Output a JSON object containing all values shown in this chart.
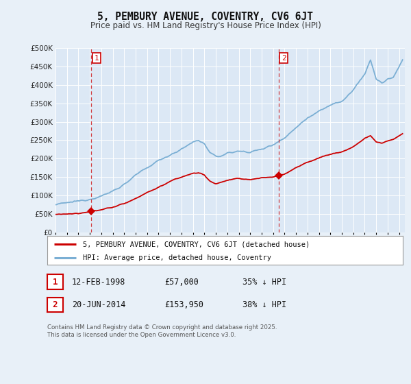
{
  "title": "5, PEMBURY AVENUE, COVENTRY, CV6 6JT",
  "subtitle": "Price paid vs. HM Land Registry's House Price Index (HPI)",
  "bg_color": "#e8f0f8",
  "plot_bg_color": "#dce8f5",
  "grid_color": "#ffffff",
  "red_color": "#cc0000",
  "blue_color": "#7bafd4",
  "ylim": [
    0,
    500000
  ],
  "yticks": [
    0,
    50000,
    100000,
    150000,
    200000,
    250000,
    300000,
    350000,
    400000,
    450000,
    500000
  ],
  "ytick_labels": [
    "£0",
    "£50K",
    "£100K",
    "£150K",
    "£200K",
    "£250K",
    "£300K",
    "£350K",
    "£400K",
    "£450K",
    "£500K"
  ],
  "xmin": 1995.0,
  "xmax": 2025.5,
  "sale1_date": 1998.12,
  "sale1_price": 57000,
  "sale2_date": 2014.47,
  "sale2_price": 153950,
  "sale1_text": "12-FEB-1998",
  "sale1_amount": "£57,000",
  "sale1_pct": "35% ↓ HPI",
  "sale2_text": "20-JUN-2014",
  "sale2_amount": "£153,950",
  "sale2_pct": "38% ↓ HPI",
  "legend_entry1": "5, PEMBURY AVENUE, COVENTRY, CV6 6JT (detached house)",
  "legend_entry2": "HPI: Average price, detached house, Coventry",
  "footer": "Contains HM Land Registry data © Crown copyright and database right 2025.\nThis data is licensed under the Open Government Licence v3.0."
}
